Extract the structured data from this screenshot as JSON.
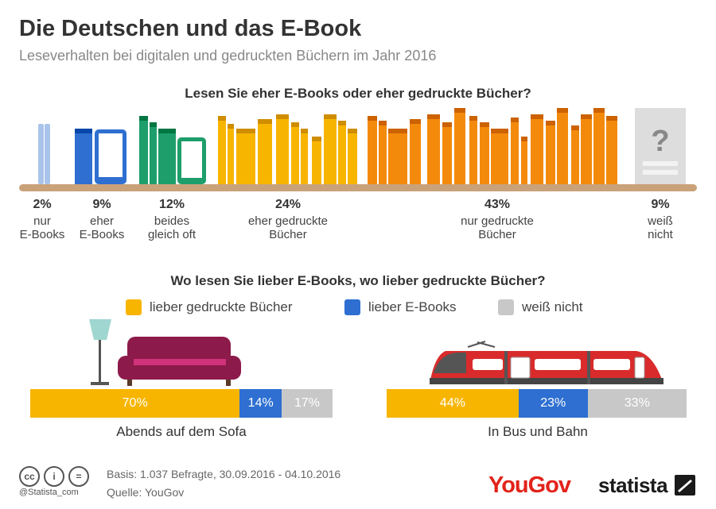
{
  "title": "Die Deutschen und das E-Book",
  "subtitle": "Leseverhalten bei digitalen und gedruckten Büchern im Jahr 2016",
  "colors": {
    "blue": "#2e6fd1",
    "green": "#1e9e6a",
    "yellow": "#f7b500",
    "orange": "#f48a0c",
    "gray": "#c8c8c8",
    "shelf": "#c9a27a",
    "sofa": "#8c1a4a"
  },
  "chart_data": [
    {
      "type": "bar",
      "title": "Lesen Sie eher E-Books oder eher gedruckte Bücher?",
      "categories": [
        {
          "pct": "2%",
          "label": [
            "nur",
            "E-Books"
          ]
        },
        {
          "pct": "9%",
          "label": [
            "eher",
            "E-Books"
          ]
        },
        {
          "pct": "12%",
          "label": [
            "beides",
            "gleich oft"
          ]
        },
        {
          "pct": "24%",
          "label": [
            "eher gedruckte",
            "Bücher"
          ]
        },
        {
          "pct": "43%",
          "label": [
            "nur gedruckte",
            "Bücher"
          ]
        },
        {
          "pct": "9%",
          "label": [
            "weiß",
            "nicht"
          ]
        }
      ],
      "values": [
        2,
        9,
        12,
        24,
        43,
        9
      ],
      "unknown_glyph": "?"
    },
    {
      "type": "bar",
      "title": "Wo lesen Sie lieber E-Books, wo lieber gedruckte Bücher?",
      "legend": [
        "lieber gedruckte Bücher",
        "lieber E-Books",
        "weiß nicht"
      ],
      "series": [
        {
          "category": "Abends auf dem Sofa",
          "values": [
            70,
            14,
            17
          ],
          "labels": [
            "70%",
            "14%",
            "17%"
          ]
        },
        {
          "category": "In Bus und Bahn",
          "values": [
            44,
            23,
            33
          ],
          "labels": [
            "44%",
            "23%",
            "33%"
          ]
        }
      ]
    }
  ],
  "footer": {
    "basis": "Basis: 1.037 Befragte, 30.09.2016 - 04.10.2016",
    "quelle": "Quelle: YouGov",
    "handle": "@Statista_com",
    "cc_icons": [
      "cc",
      "i",
      "="
    ],
    "brand_yougov": "YouGov",
    "brand_statista": "statista"
  }
}
